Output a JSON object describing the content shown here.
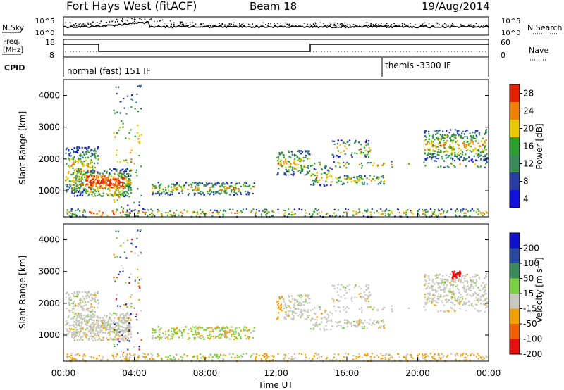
{
  "header": {
    "station": "Fort Hays West (fitACF)",
    "beam": "Beam 18",
    "date": "19/Aug/2014"
  },
  "panels": {
    "nsky": {
      "label": "N.Sky",
      "right_label": "N.Search",
      "left_ticks": [
        "10^5",
        "10^0"
      ],
      "right_ticks": [
        "10^5",
        "10^0"
      ]
    },
    "freq": {
      "label_line1": "Freq.",
      "label_line2": "[MHz]",
      "left_ticks": [
        "18",
        "8"
      ],
      "right_ticks": [
        "60",
        "0"
      ],
      "right_label": "Nave"
    },
    "cpid": {
      "label": "CPID",
      "program_1": "normal (fast) 151 IF",
      "program_2": "themis -3300 IF"
    }
  },
  "chart_data": [
    {
      "type": "heatmap",
      "quantity": "Power",
      "colorbar_label": "Power [dB]",
      "colorbar_ticks": [
        "28",
        "24",
        "20",
        "16",
        "12",
        "8",
        "4"
      ],
      "ylabel": "Slant Range [km]",
      "y_ticks": [
        "4000",
        "3000",
        "2000",
        "1000"
      ],
      "ylim": [
        180,
        4500
      ],
      "xlim": [
        0,
        24
      ],
      "colors": [
        "#1010e0",
        "#2a3ca8",
        "#3a8a5a",
        "#2ca02c",
        "#e8c800",
        "#f08000",
        "#e82000"
      ]
    },
    {
      "type": "heatmap",
      "quantity": "Velocity",
      "colorbar_label": "Velocity [m s⁻¹]",
      "colorbar_ticks": [
        "200",
        "100",
        "50",
        "15",
        "-15",
        "-50",
        "-100",
        "-200"
      ],
      "ylabel": "Slant Range [km]",
      "y_ticks": [
        "4000",
        "3000",
        "2000",
        "1000"
      ],
      "ylim": [
        180,
        4500
      ],
      "xlim": [
        0,
        24
      ],
      "colors": [
        "#1010d0",
        "#2a4aa0",
        "#3a8a5a",
        "#7ad040",
        "#c8c8c0",
        "#f0a000",
        "#f06000",
        "#e81010"
      ]
    }
  ],
  "x_axis": {
    "label": "Time UT",
    "ticks": [
      "00:00",
      "04:00",
      "08:00",
      "12:00",
      "16:00",
      "20:00",
      "00:00"
    ]
  }
}
